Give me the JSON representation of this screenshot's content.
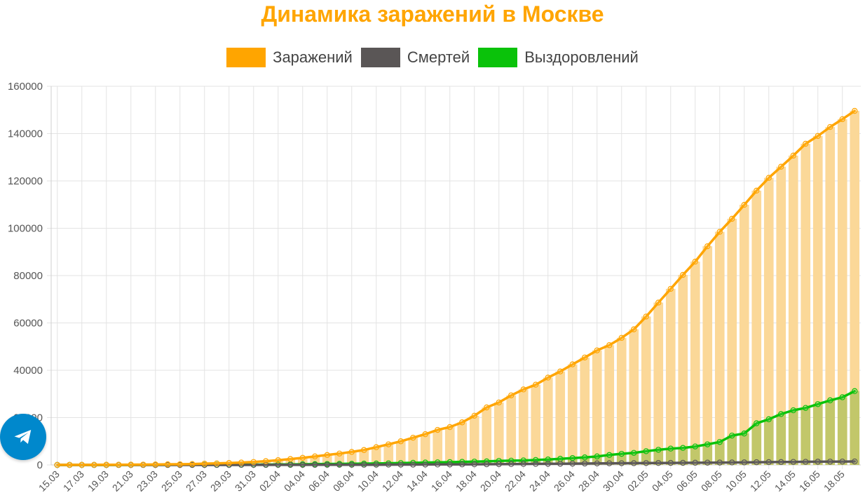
{
  "telegram_button": {
    "icon": "telegram-icon",
    "color": "#0088cc"
  },
  "chart_data": {
    "type": "bar+line",
    "title": "Динамика заражений в Москве",
    "title_color": "#ffa500",
    "legend": {
      "placement": "top-center"
    },
    "grid": true,
    "ylim": [
      0,
      160000
    ],
    "yticks": [
      0,
      20000,
      40000,
      60000,
      80000,
      100000,
      120000,
      140000,
      160000
    ],
    "x": [
      "15.03",
      "16.03",
      "17.03",
      "18.03",
      "19.03",
      "20.03",
      "21.03",
      "22.03",
      "23.03",
      "24.03",
      "25.03",
      "26.03",
      "27.03",
      "28.03",
      "29.03",
      "30.03",
      "31.03",
      "01.04",
      "02.04",
      "03.04",
      "04.04",
      "05.04",
      "06.04",
      "07.04",
      "08.04",
      "09.04",
      "10.04",
      "11.04",
      "12.04",
      "13.04",
      "14.04",
      "15.04",
      "16.04",
      "17.04",
      "18.04",
      "19.04",
      "20.04",
      "21.04",
      "22.04",
      "23.04",
      "24.04",
      "25.04",
      "26.04",
      "27.04",
      "28.04",
      "29.04",
      "30.04",
      "01.05",
      "02.05",
      "03.05",
      "04.05",
      "05.05",
      "06.05",
      "07.05",
      "08.05",
      "09.05",
      "10.05",
      "11.05",
      "12.05",
      "13.05",
      "14.05",
      "15.05",
      "16.05",
      "17.05",
      "18.05",
      "19.05"
    ],
    "xtick_labels": [
      "15.03",
      "17.03",
      "19.03",
      "21.03",
      "23.03",
      "25.03",
      "27.03",
      "29.03",
      "31.03",
      "02.04",
      "04.04",
      "06.04",
      "08.04",
      "10.04",
      "12.04",
      "14.04",
      "16.04",
      "18.04",
      "20.04",
      "22.04",
      "24.04",
      "26.04",
      "28.04",
      "30.04",
      "02.05",
      "04.05",
      "06.05",
      "08.05",
      "10.05",
      "12.05",
      "14.05",
      "16.05",
      "18.05"
    ],
    "series": [
      {
        "name": "Заражений",
        "color": "#ffa500",
        "bar_fill": "#fbd898",
        "values": [
          20,
          30,
          40,
          60,
          80,
          100,
          120,
          140,
          190,
          260,
          290,
          390,
          550,
          650,
          820,
          1000,
          1250,
          1600,
          2000,
          2500,
          3000,
          3600,
          4200,
          4800,
          5500,
          6300,
          7500,
          8700,
          10000,
          11500,
          13000,
          14800,
          16000,
          18000,
          20800,
          24300,
          26400,
          29400,
          31900,
          33900,
          36900,
          39500,
          42500,
          45400,
          48400,
          50600,
          53700,
          57300,
          62700,
          68600,
          74400,
          80300,
          85900,
          92400,
          98500,
          104000,
          109900,
          115900,
          121300,
          126000,
          130700,
          135700,
          139000,
          142800,
          146100,
          149600
        ]
      },
      {
        "name": "Смертей",
        "color": "#5a5656",
        "values": [
          0,
          0,
          0,
          0,
          0,
          0,
          0,
          0,
          0,
          0,
          0,
          1,
          2,
          3,
          5,
          10,
          15,
          20,
          25,
          30,
          40,
          45,
          55,
          65,
          70,
          80,
          100,
          125,
          140,
          150,
          170,
          200,
          220,
          240,
          270,
          300,
          330,
          380,
          420,
          460,
          480,
          510,
          550,
          600,
          640,
          680,
          730,
          750,
          800,
          830,
          860,
          890,
          930,
          960,
          1000,
          1050,
          1080,
          1150,
          1200,
          1230,
          1280,
          1320,
          1370,
          1400,
          1430,
          1470
        ]
      },
      {
        "name": "Выздоровлений",
        "color": "#0ac20a",
        "bar_fill": "#c2c76a",
        "values": [
          0,
          0,
          0,
          0,
          0,
          5,
          10,
          20,
          30,
          40,
          50,
          60,
          70,
          80,
          100,
          120,
          140,
          160,
          200,
          250,
          300,
          350,
          400,
          450,
          500,
          560,
          620,
          700,
          800,
          900,
          1000,
          1100,
          1200,
          1300,
          1400,
          1500,
          1700,
          1800,
          1900,
          2100,
          2300,
          2600,
          2900,
          3200,
          3600,
          4200,
          4700,
          5100,
          5800,
          6400,
          6900,
          7200,
          7800,
          8700,
          9700,
          12400,
          13300,
          17600,
          19300,
          21500,
          23100,
          24100,
          25700,
          27300,
          28600,
          31200
        ]
      }
    ]
  }
}
